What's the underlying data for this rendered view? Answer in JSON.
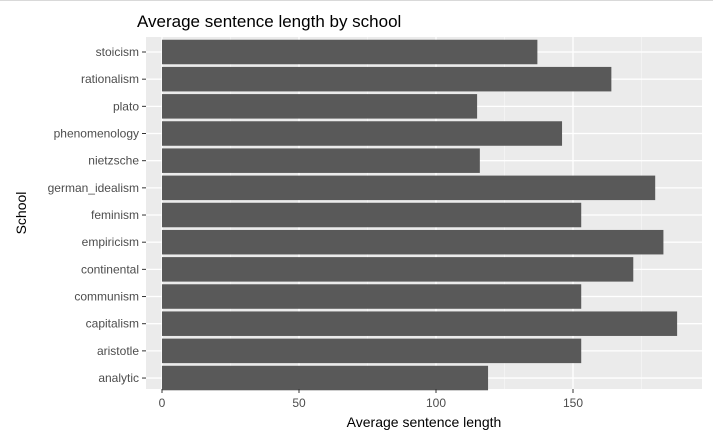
{
  "chart_data": {
    "type": "bar",
    "orientation": "horizontal",
    "title": "Average sentence length by school",
    "xlabel": "Average sentence length",
    "ylabel": "School",
    "xlim": [
      0,
      197
    ],
    "x_ticks": [
      0,
      50,
      100,
      150
    ],
    "categories": [
      "stoicism",
      "rationalism",
      "plato",
      "phenomenology",
      "nietzsche",
      "german_idealism",
      "feminism",
      "empiricism",
      "continental",
      "communism",
      "capitalism",
      "aristotle",
      "analytic"
    ],
    "values": [
      137,
      164,
      115,
      146,
      116,
      180,
      153,
      183,
      172,
      153,
      188,
      153,
      119
    ],
    "grid": true,
    "legend": "none",
    "colors": {
      "bar": "#595959",
      "panel": "#ebebeb",
      "grid_major": "#ffffff",
      "grid_minor": "#f5f5f5",
      "tick_text": "#4d4d4d",
      "tick_mark": "#333333"
    }
  }
}
